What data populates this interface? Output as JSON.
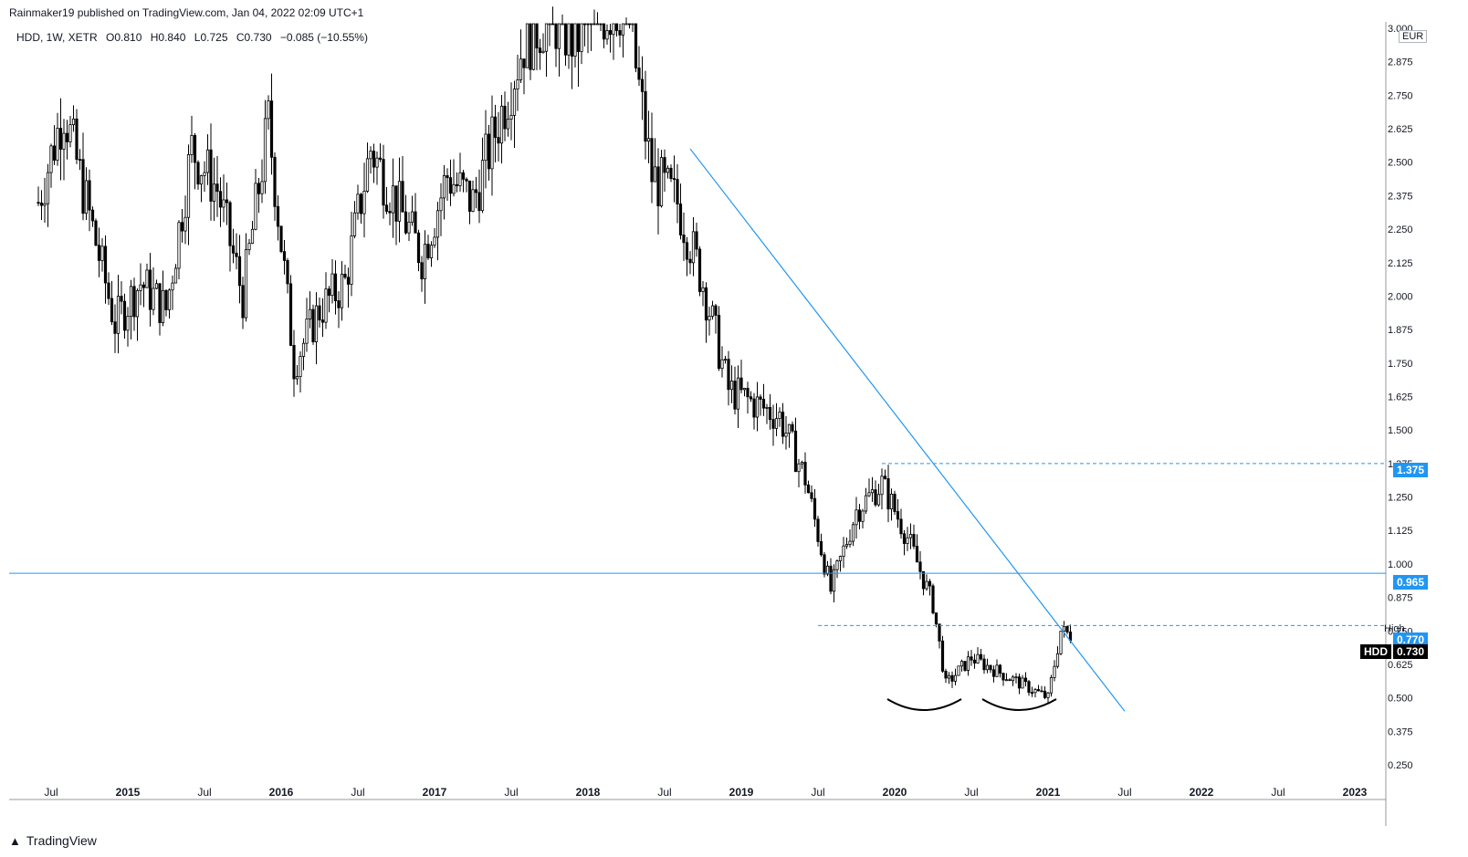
{
  "header": {
    "publisher_line": "Rainmaker19 published on TradingView.com, Jan 04, 2022 02:09 UTC+1"
  },
  "legend": {
    "symbol": "HDD, 1W, XETR",
    "open": "O0.810",
    "high": "H0.840",
    "low": "L0.725",
    "close": "C0.730",
    "change": "−0.085 (−10.55%)"
  },
  "footer": {
    "brand": "TradingView"
  },
  "axis": {
    "currency": "EUR",
    "y_ticks": [
      "3.000",
      "2.875",
      "2.750",
      "2.625",
      "2.500",
      "2.375",
      "2.250",
      "2.125",
      "2.000",
      "1.875",
      "1.750",
      "1.625",
      "1.500",
      "1.375",
      "1.250",
      "1.125",
      "1.000",
      "0.875",
      "0.750",
      "0.625",
      "0.500",
      "0.375",
      "0.250"
    ],
    "x_ticks": [
      "Jul",
      "2015",
      "Jul",
      "2016",
      "Jul",
      "2017",
      "Jul",
      "2018",
      "Jul",
      "2019",
      "Jul",
      "2020",
      "Jul",
      "2021",
      "Jul",
      "2022",
      "Jul",
      "2023"
    ]
  },
  "tags": {
    "level_1375": "1.375",
    "level_0965": "0.965",
    "high_label": "High",
    "high_value": "0.770",
    "symbol_tag": "HDD",
    "last_value": "0.730"
  },
  "colors": {
    "trendline": "#2196f3",
    "tag_blue": "#2196f3",
    "tag_black": "#000000",
    "candle": "#000000"
  },
  "chart_data": {
    "type": "candlestick",
    "symbol": "HDD",
    "interval": "1W",
    "exchange": "XETR",
    "ylim": [
      0.2,
      3.0
    ],
    "y_unit": "EUR",
    "approx_weekly_closes": [
      {
        "date": "2014-06",
        "value": 2.35
      },
      {
        "date": "2014-08",
        "value": 2.7
      },
      {
        "date": "2014-10",
        "value": 2.3
      },
      {
        "date": "2014-12",
        "value": 1.9
      },
      {
        "date": "2015-02",
        "value": 2.05
      },
      {
        "date": "2015-04",
        "value": 1.95
      },
      {
        "date": "2015-06",
        "value": 2.55
      },
      {
        "date": "2015-08",
        "value": 2.4
      },
      {
        "date": "2015-10",
        "value": 2.0
      },
      {
        "date": "2015-12",
        "value": 2.65
      },
      {
        "date": "2016-02",
        "value": 1.75
      },
      {
        "date": "2016-04",
        "value": 1.95
      },
      {
        "date": "2016-06",
        "value": 2.05
      },
      {
        "date": "2016-08",
        "value": 2.55
      },
      {
        "date": "2016-10",
        "value": 2.35
      },
      {
        "date": "2016-12",
        "value": 2.15
      },
      {
        "date": "2017-02",
        "value": 2.45
      },
      {
        "date": "2017-04",
        "value": 2.35
      },
      {
        "date": "2017-06",
        "value": 2.65
      },
      {
        "date": "2017-08",
        "value": 2.95
      },
      {
        "date": "2017-10",
        "value": 3.05
      },
      {
        "date": "2017-12",
        "value": 2.95
      },
      {
        "date": "2018-02",
        "value": 3.05
      },
      {
        "date": "2018-04",
        "value": 3.1
      },
      {
        "date": "2018-06",
        "value": 2.45
      },
      {
        "date": "2018-08",
        "value": 2.35
      },
      {
        "date": "2018-10",
        "value": 2.05
      },
      {
        "date": "2018-12",
        "value": 1.65
      },
      {
        "date": "2019-02",
        "value": 1.6
      },
      {
        "date": "2019-04",
        "value": 1.55
      },
      {
        "date": "2019-06",
        "value": 1.32
      },
      {
        "date": "2019-08",
        "value": 0.9
      },
      {
        "date": "2019-10",
        "value": 1.2
      },
      {
        "date": "2019-12",
        "value": 1.3
      },
      {
        "date": "2020-02",
        "value": 1.1
      },
      {
        "date": "2020-04",
        "value": 0.85
      },
      {
        "date": "2020-05",
        "value": 0.55
      },
      {
        "date": "2020-07",
        "value": 0.65
      },
      {
        "date": "2020-09",
        "value": 0.6
      },
      {
        "date": "2020-11",
        "value": 0.55
      },
      {
        "date": "2021-01",
        "value": 0.5
      },
      {
        "date": "2021-02",
        "value": 0.75
      },
      {
        "date": "2021-03",
        "value": 0.73
      }
    ],
    "horizontal_levels": [
      {
        "value": 1.375,
        "style": "dashed"
      },
      {
        "value": 0.965,
        "style": "solid"
      },
      {
        "value": 0.77,
        "style": "dashed"
      }
    ],
    "trendline": {
      "from": {
        "date": "2018-09",
        "value": 2.55
      },
      "to": {
        "date": "2021-07",
        "value": 0.45
      }
    },
    "annotations": [
      "double-bottom arcs near 0.48"
    ]
  }
}
